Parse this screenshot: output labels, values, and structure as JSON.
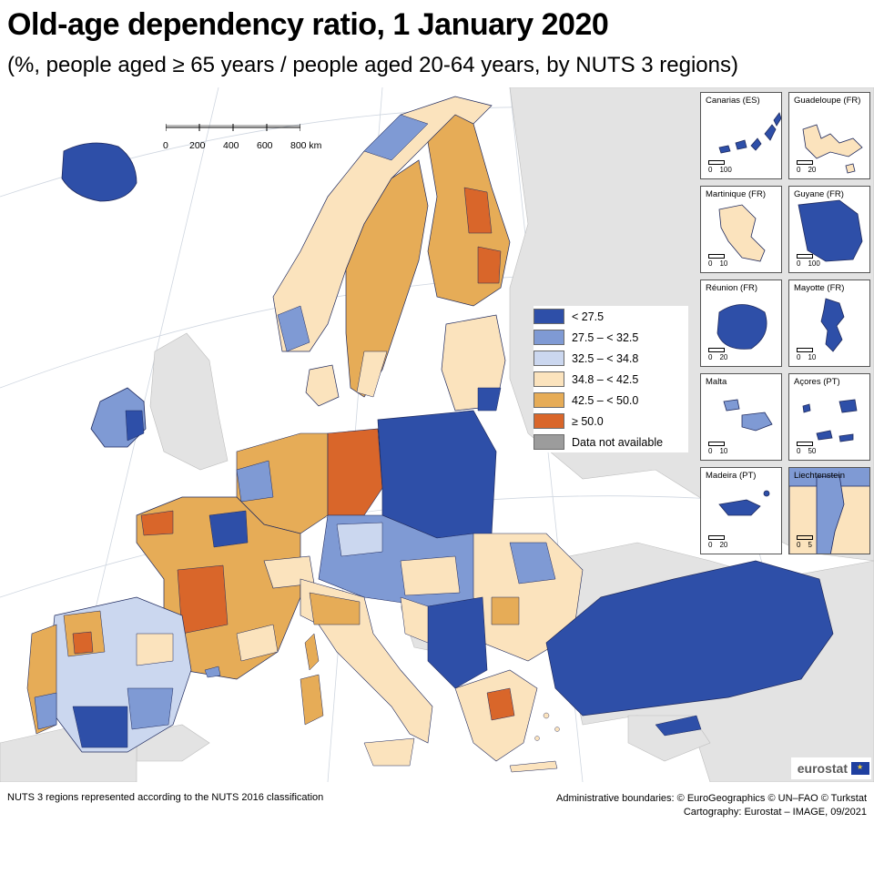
{
  "header": {
    "title": "Old-age dependency ratio, 1 January 2020",
    "subtitle": "(%, people aged ≥ 65 years / people aged 20-64 years, by NUTS 3 regions)"
  },
  "legend": {
    "items": [
      {
        "label": "< 27.5",
        "color": "#2e4fa8"
      },
      {
        "label": "27.5 – < 32.5",
        "color": "#7f9ad4"
      },
      {
        "label": "32.5 – < 34.8",
        "color": "#cbd7ef"
      },
      {
        "label": "34.8 – < 42.5",
        "color": "#fbe3bd"
      },
      {
        "label": "42.5 – < 50.0",
        "color": "#e6ac57"
      },
      {
        "label": "≥ 50.0",
        "color": "#d9662a"
      },
      {
        "label": "Data not available",
        "color": "#9c9c9c"
      }
    ]
  },
  "scale": {
    "labels": [
      "0",
      "200",
      "400",
      "600",
      "800 km"
    ]
  },
  "insets": [
    {
      "label": "Canarias (ES)",
      "scale": [
        "0",
        "100"
      ],
      "shape": "canarias",
      "color": "#2e4fa8"
    },
    {
      "label": "Guadeloupe (FR)",
      "scale": [
        "0",
        "20"
      ],
      "shape": "guadeloupe",
      "color": "#fbe3bd"
    },
    {
      "label": "Martinique (FR)",
      "scale": [
        "0",
        "10"
      ],
      "shape": "martinique",
      "color": "#fbe3bd"
    },
    {
      "label": "Guyane (FR)",
      "scale": [
        "0",
        "100"
      ],
      "shape": "guyane",
      "color": "#2e4fa8"
    },
    {
      "label": "Réunion (FR)",
      "scale": [
        "0",
        "20"
      ],
      "shape": "reunion",
      "color": "#2e4fa8"
    },
    {
      "label": "Mayotte (FR)",
      "scale": [
        "0",
        "10"
      ],
      "shape": "mayotte",
      "color": "#2e4fa8"
    },
    {
      "label": "Malta",
      "scale": [
        "0",
        "10"
      ],
      "shape": "malta",
      "color": "#7f9ad4"
    },
    {
      "label": "Açores (PT)",
      "scale": [
        "0",
        "50"
      ],
      "shape": "acores",
      "color": "#2e4fa8"
    },
    {
      "label": "Madeira (PT)",
      "scale": [
        "0",
        "20"
      ],
      "shape": "madeira",
      "color": "#2e4fa8"
    },
    {
      "label": "Liechtenstein",
      "scale": [
        "0",
        "5"
      ],
      "shape": "liechtenstein",
      "color": "#7f9ad4"
    }
  ],
  "logo": {
    "text": "eurostat"
  },
  "footer": {
    "left": "NUTS 3 regions represented according to the NUTS 2016 classification",
    "right_line1": "Administrative boundaries: © EuroGeographics © UN–FAO © Turkstat",
    "right_line2": "Cartography: Eurostat – IMAGE, 09/2021"
  }
}
